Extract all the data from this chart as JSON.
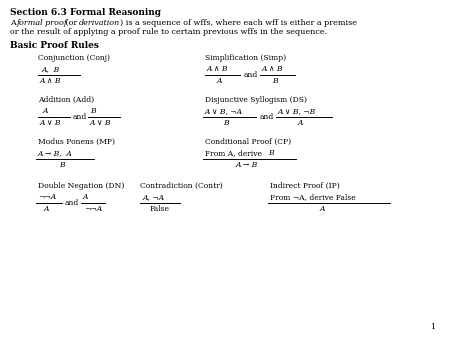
{
  "page_bg": "#ffffff",
  "title": "Section 6.3 Formal Reasoning",
  "page_num": "1"
}
